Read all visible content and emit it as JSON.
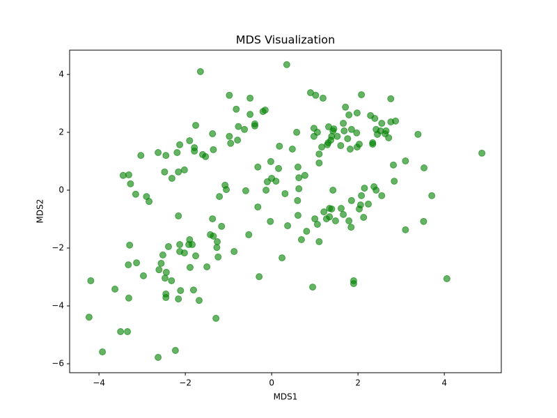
{
  "chart_data": {
    "type": "scatter",
    "title": "MDS Visualization",
    "x_label": "MDS1",
    "y_label": "MDS2",
    "color": "green",
    "alpha": 0.6,
    "xlim": [
      -4.68,
      5.32
    ],
    "ylim": [
      -6.31,
      4.84
    ],
    "xticks": [
      {
        "value": -4,
        "label": "−4"
      },
      {
        "value": -2,
        "label": "−2"
      },
      0,
      2,
      4
    ],
    "yticks": [
      {
        "value": -6,
        "label": "−6"
      },
      {
        "value": -4,
        "label": "−4"
      },
      {
        "value": -2,
        "label": "−2"
      },
      0,
      2,
      4
    ],
    "x": [
      -1.65,
      0.35,
      -0.98,
      -0.5,
      -0.82,
      -0.5,
      -0.2,
      -0.15,
      -0.63,
      -0.39,
      -0.39,
      -0.77,
      -0.98,
      -0.79,
      -0.95,
      -1.37,
      -1.35,
      -1.76,
      -1.9,
      -1.79,
      -1.79,
      -1.6,
      -1.53,
      -2.13,
      -2.19,
      -2.45,
      -2.63,
      -3.03,
      -2.02,
      -2.16,
      -2.48,
      -2.31,
      -3.44,
      -3.31,
      -3.27,
      -3.15,
      -2.9,
      -2.84,
      -1.08,
      -1.05,
      -1.21,
      0.9,
      1.02,
      1.19,
      2.08,
      2.76,
      1.71,
      1.98,
      1.79,
      2.29,
      2.39,
      2.55,
      2.76,
      2.87,
      1.66,
      1.32,
      1.44,
      0.98,
      1.06,
      0.58,
      1.42,
      1.68,
      1.85,
      1.97,
      2.42,
      2.52,
      2.65,
      2.63,
      2.45,
      3.39,
      0.98,
      1.39,
      1.52,
      1.37,
      1.76,
      2.03,
      2.34,
      2.34,
      2.71,
      1.31,
      1.29,
      1.16,
      1.6,
      1.98,
      1.82,
      0.48,
      0.18,
      1.1,
      1.1,
      3.1,
      2.82,
      3.53,
      -0.32,
      -0.02,
      0.16,
      0.61,
      0.77,
      0.63,
      0.0,
      -0.1,
      0.1,
      -0.6,
      -0.13,
      0.63,
      0.31,
      2.84,
      2.15,
      2.37,
      2.42,
      1.42,
      2.55,
      3.71,
      2.08,
      1.85,
      2.24,
      2.06,
      -0.32,
      0.6,
      0.61,
      1.61,
      2.03,
      1.34,
      1.39,
      1.66,
      1.21,
      1.34,
      1.27,
      1.0,
      1.48,
      2.13,
      1.79,
      1.84,
      1.06,
      0.81,
      0.37,
      -0.03,
      3.1,
      3.52,
      0.69,
      1.1,
      -0.53,
      0.24,
      -0.29,
      0.95,
      1.9,
      1.9,
      4.06,
      4.87,
      -1.37,
      -1.16,
      -1.42,
      -1.35,
      -2.16,
      -1.9,
      -1.92,
      -1.84,
      -2.13,
      -1.26,
      -1.27,
      -0.87,
      -2.13,
      -2.02,
      -1.76,
      -1.24,
      -2.39,
      -2.52,
      -2.56,
      -2.61,
      -1.89,
      -1.5,
      -3.29,
      -3.13,
      -3.32,
      -2.97,
      -2.44,
      -2.47,
      -2.32,
      -4.19,
      -3.63,
      -1.81,
      -2.11,
      -2.45,
      -2.45,
      -3.31,
      -2.16,
      -1.68,
      -1.29,
      -4.23,
      -3.5,
      -3.34,
      -3.92,
      -2.23,
      -2.63
    ],
    "values": [
      4.1,
      4.34,
      3.28,
      3.18,
      2.8,
      2.62,
      2.72,
      2.77,
      2.1,
      2.29,
      2.22,
      2.2,
      1.86,
      1.73,
      1.62,
      1.95,
      1.4,
      2.24,
      1.71,
      1.47,
      1.35,
      1.23,
      1.16,
      1.57,
      1.3,
      1.2,
      1.3,
      1.2,
      0.7,
      0.63,
      0.63,
      0.41,
      0.51,
      0.53,
      0.22,
      -0.14,
      -0.22,
      -0.39,
      0.17,
      0.02,
      -0.22,
      3.37,
      3.28,
      3.18,
      3.3,
      3.16,
      2.87,
      2.67,
      2.6,
      2.58,
      2.48,
      2.31,
      2.36,
      2.39,
      2.31,
      2.19,
      2.12,
      2.14,
      2.0,
      2.0,
      2.05,
      2.05,
      2.1,
      1.98,
      2.1,
      2.05,
      2.05,
      1.95,
      1.93,
      1.93,
      1.86,
      1.86,
      1.86,
      1.73,
      1.78,
      1.59,
      1.64,
      1.59,
      1.81,
      1.64,
      1.57,
      1.49,
      1.54,
      1.49,
      1.42,
      1.42,
      1.52,
      1.25,
      0.94,
      1.01,
      0.87,
      0.77,
      0.8,
      0.99,
      0.75,
      0.8,
      0.51,
      0.43,
      0.41,
      0.29,
      0.31,
      -0.02,
      0.0,
      0.05,
      -0.12,
      0.31,
      0.07,
      0.12,
      0.0,
      0.0,
      -0.19,
      -0.19,
      -0.19,
      -0.36,
      -0.48,
      -0.51,
      -0.58,
      -0.36,
      -0.87,
      -0.63,
      -0.65,
      -0.63,
      -0.65,
      -0.84,
      -0.75,
      -0.92,
      -0.99,
      -0.99,
      -1.06,
      -0.94,
      -1.06,
      -1.28,
      -1.18,
      -1.42,
      -1.23,
      -1.08,
      -1.37,
      -1.08,
      -1.71,
      -1.78,
      -1.54,
      -2.34,
      -2.99,
      -3.35,
      -3.13,
      -3.23,
      -3.06,
      1.28,
      -0.99,
      -1.25,
      -1.54,
      -1.59,
      -0.89,
      -1.71,
      -1.88,
      -1.88,
      -1.88,
      -1.78,
      -1.98,
      -2.12,
      -2.12,
      -2.17,
      -2.27,
      -2.31,
      -1.95,
      -2.24,
      -2.53,
      -2.75,
      -2.67,
      -2.65,
      -1.9,
      -2.51,
      -2.58,
      -2.96,
      -2.84,
      -3.04,
      -3.13,
      -3.13,
      -3.42,
      -3.45,
      -3.47,
      -3.59,
      -3.71,
      -3.73,
      -3.76,
      -3.81,
      -4.43,
      -4.39,
      -4.89,
      -4.89,
      -5.59,
      -5.54,
      -5.78
    ]
  }
}
